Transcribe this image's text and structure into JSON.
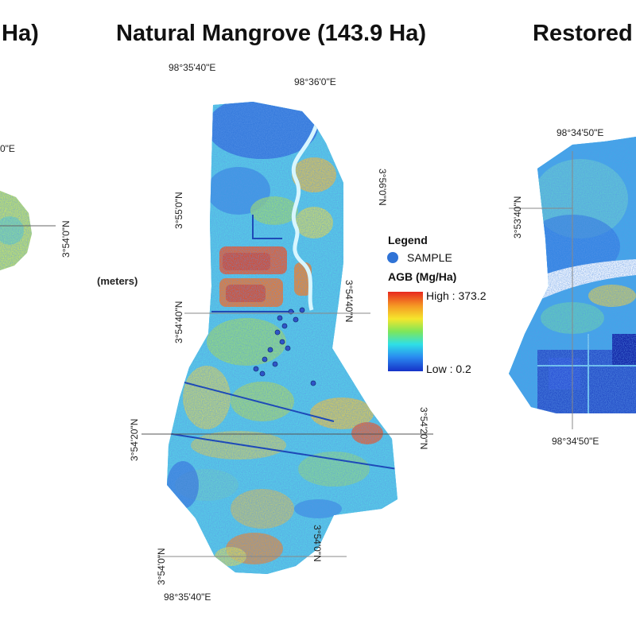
{
  "panels": {
    "left": {
      "title": "Ha)",
      "lon_label": "0\"E",
      "lat_label": "3°54'0\"N",
      "fragments": [
        "(meters)"
      ]
    },
    "center": {
      "title": "Natural Mangrove (143.9 Ha)",
      "lon_labels": {
        "top_left": "98°35'40\"E",
        "top_right": "98°36'0\"E",
        "bottom": "98°35'40\"E"
      },
      "lat_labels_left": [
        "3°55'0\"N",
        "3°54'40\"N",
        "3°54'20\"N",
        "3°54'0\"N"
      ],
      "lat_labels_right": [
        "3°56'0\"N",
        "3°54'40\"N",
        "3°54'20\"N",
        "3°54'0\"N"
      ],
      "units_label": "(meters)"
    },
    "right": {
      "title": "Restored",
      "lon_label_top": "98°34'50\"E",
      "lon_label_bottom": "98°34'50\"E",
      "lat_label": "3°53'40\"N"
    }
  },
  "legend": {
    "title": "Legend",
    "sample_label": "SAMPLE",
    "agb_title": "AGB (Mg/Ha)",
    "high_label": "High : 373.2",
    "low_label": "Low : 0.2",
    "high_value": 373.2,
    "low_value": 0.2,
    "colors": [
      "#e8281e",
      "#f59a24",
      "#f5e62c",
      "#7ee65a",
      "#2fe0e6",
      "#2a8cf0",
      "#1632c8"
    ],
    "sample_color": "#2f73d6"
  },
  "map_colors": {
    "background": "#3fc0ec",
    "low": "#2a5cd8",
    "mid": "#6fe0a0",
    "high_yellow": "#f2e640",
    "high_orange": "#f2922a",
    "high_red": "#e0401e"
  }
}
